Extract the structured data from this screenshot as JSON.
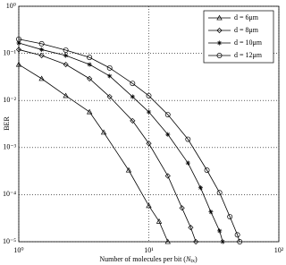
{
  "chart_data": {
    "type": "line",
    "x_label": {
      "text": "Number of molecules per bit (",
      "symbol": "N",
      "subscript": "tx",
      "close": ")"
    },
    "y_label": "BER",
    "log_x": true,
    "log_y": true,
    "grid": true,
    "legend": "top-right",
    "xlim": [
      1,
      100
    ],
    "ylim": [
      1e-05,
      1
    ],
    "xticks": [
      {
        "value": 1,
        "label": "10⁰"
      },
      {
        "value": 10,
        "label": "10¹"
      },
      {
        "value": 100,
        "label": "10²"
      }
    ],
    "yticks": [
      {
        "value": 1e-05,
        "label": "10⁻⁵"
      },
      {
        "value": 0.0001,
        "label": "10⁻⁴"
      },
      {
        "value": 0.001,
        "label": "10⁻³"
      },
      {
        "value": 0.01,
        "label": "10⁻²"
      },
      {
        "value": 0.1,
        "label": "10⁻¹"
      },
      {
        "value": 1,
        "label": "10⁰"
      }
    ],
    "series": [
      {
        "name": "d = 6μm",
        "color": "#000000",
        "marker": "triangle",
        "x": [
          1,
          1.5,
          2.3,
          3.5,
          4.5,
          7,
          10,
          12,
          14
        ],
        "values": [
          0.058,
          0.029,
          0.0126,
          0.0057,
          0.0021,
          0.00033,
          5.8e-05,
          2.7e-05,
          1e-05
        ]
      },
      {
        "name": "d = 8μm",
        "color": "#000000",
        "marker": "diamond",
        "x": [
          1,
          1.5,
          2.3,
          3.5,
          5,
          7.5,
          10,
          14,
          18,
          21,
          23
        ],
        "values": [
          0.12,
          0.09,
          0.058,
          0.029,
          0.012,
          0.0037,
          0.00122,
          0.00025,
          5.2e-05,
          2e-05,
          1e-05
        ]
      },
      {
        "name": "d = 10μm",
        "color": "#000000",
        "marker": "star",
        "x": [
          1,
          1.5,
          2.3,
          3.5,
          5,
          7.5,
          10,
          14,
          20,
          25,
          30,
          35,
          37
        ],
        "values": [
          0.166,
          0.12,
          0.09,
          0.058,
          0.033,
          0.012,
          0.0057,
          0.0019,
          0.00047,
          0.00014,
          4.3e-05,
          1.7e-05,
          1e-05
        ]
      },
      {
        "name": "d = 12μm",
        "color": "#000000",
        "marker": "circle",
        "x": [
          1,
          1.5,
          2.3,
          3.5,
          5,
          7.5,
          10,
          14,
          20,
          28,
          35,
          42,
          48,
          50
        ],
        "values": [
          0.2,
          0.16,
          0.117,
          0.082,
          0.049,
          0.023,
          0.0126,
          0.005,
          0.0015,
          0.00033,
          0.00011,
          3.4e-05,
          1.4e-05,
          1e-05
        ]
      }
    ]
  }
}
